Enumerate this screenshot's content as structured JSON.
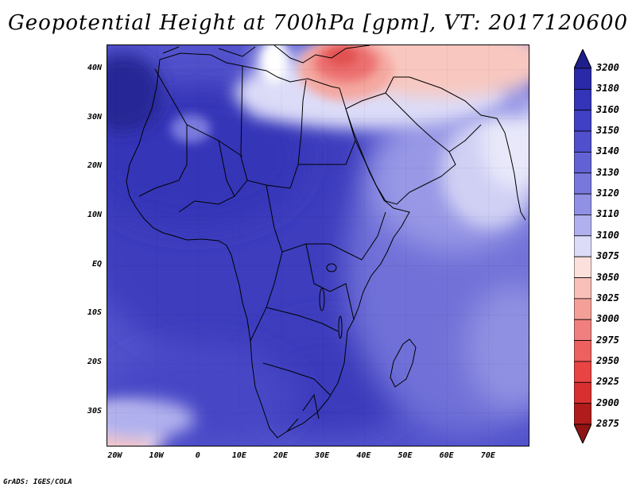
{
  "title": "Geopotential Height at 700hPa [gpm], VT: 2017120600",
  "footer": "GrADS: IGES/COLA",
  "map": {
    "lat_labels": [
      "40N",
      "30N",
      "20N",
      "10N",
      "EQ",
      "10S",
      "20S",
      "30S"
    ],
    "lat_values": [
      40,
      30,
      20,
      10,
      0,
      -10,
      -20,
      -30
    ],
    "lon_labels": [
      "20W",
      "10W",
      "0",
      "10E",
      "20E",
      "30E",
      "40E",
      "50E",
      "60E",
      "70E"
    ],
    "lon_values": [
      -20,
      -10,
      0,
      10,
      20,
      30,
      40,
      50,
      60,
      70
    ],
    "lon_range": [
      -22,
      80
    ],
    "lat_range": [
      -37,
      45
    ]
  },
  "colorbar": {
    "levels": [
      "3200",
      "3180",
      "3160",
      "3150",
      "3140",
      "3130",
      "3120",
      "3110",
      "3100",
      "3075",
      "3050",
      "3025",
      "3000",
      "2975",
      "2950",
      "2925",
      "2900",
      "2875"
    ],
    "colors": [
      "#1e1e8c",
      "#2a2aa8",
      "#3434b8",
      "#4040c4",
      "#5050cc",
      "#6262d4",
      "#7878dc",
      "#9090e4",
      "#b0b0ee",
      "#dcdcf8",
      "#fbe0dc",
      "#f8c0b8",
      "#f4a098",
      "#f08080",
      "#ec6060",
      "#e84444",
      "#d83030",
      "#b01c1c",
      "#901414"
    ]
  }
}
